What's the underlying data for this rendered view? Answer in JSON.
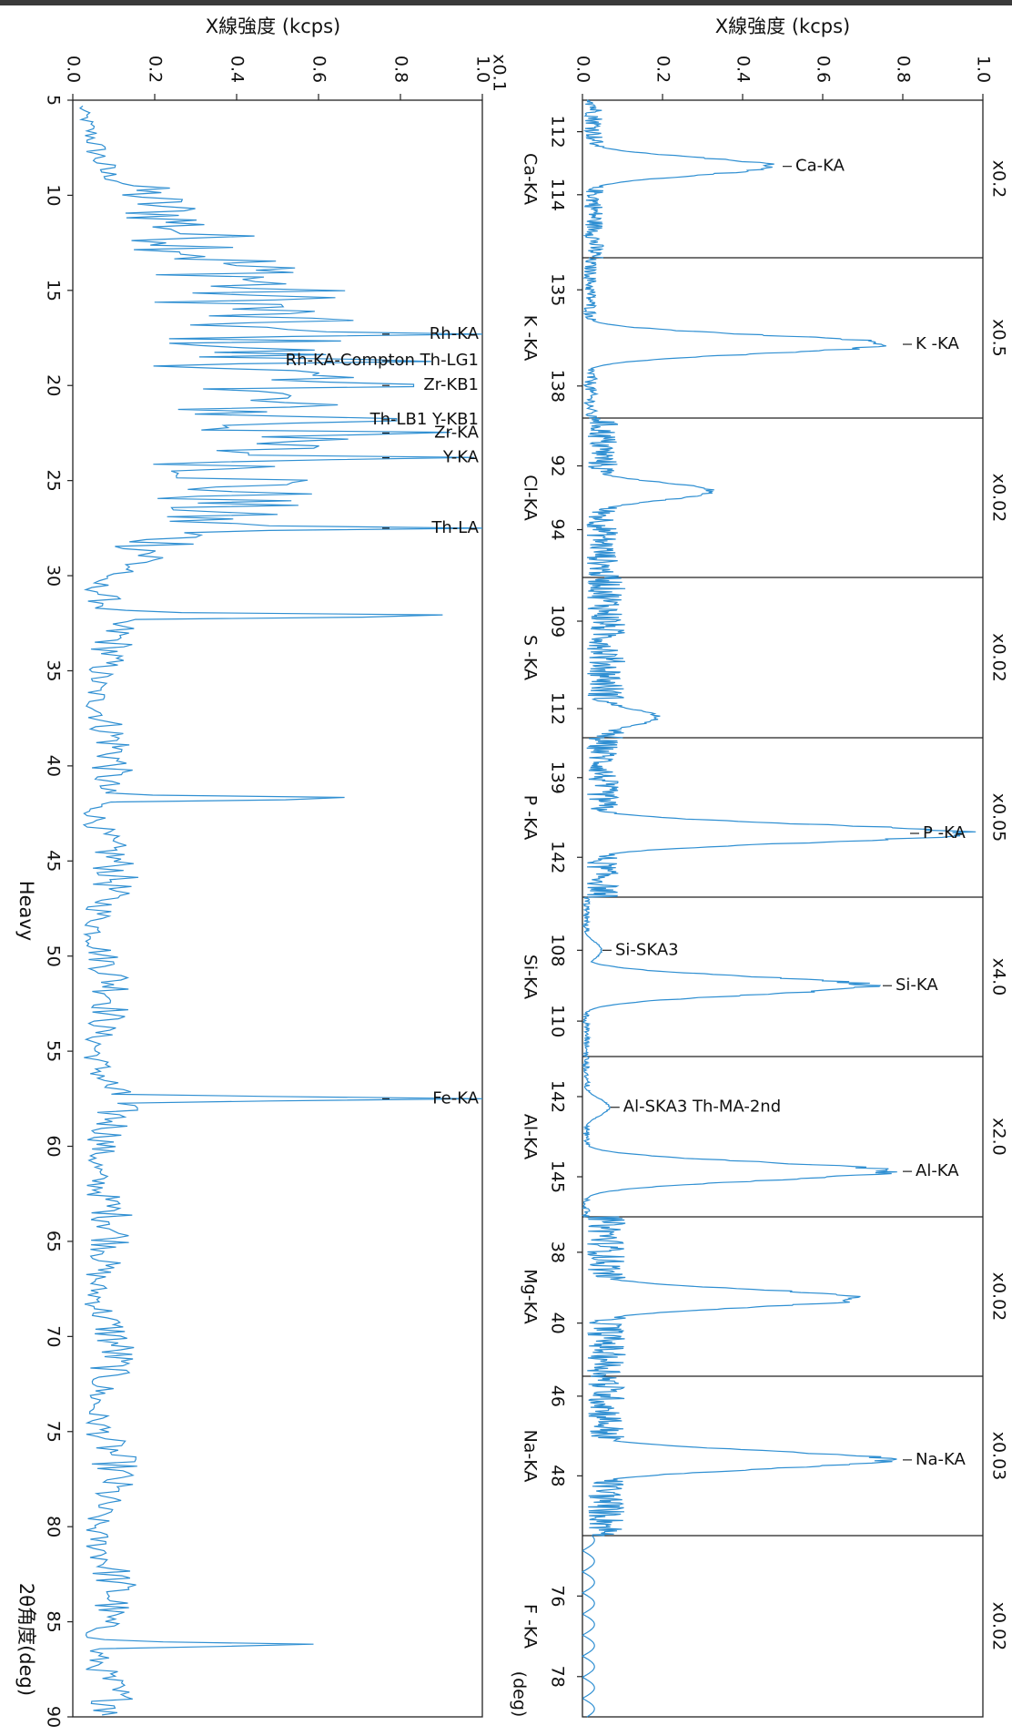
{
  "chart_data": [
    {
      "type": "line",
      "name_printed": "Heavy",
      "ylabel": "X線強度 (kcps)",
      "xlabel": "2θ角度(deg)",
      "y_multiplier": "x0.1",
      "ylim": [
        0,
        1.0
      ],
      "yticks": [
        "0.0",
        "0.2",
        "0.4",
        "0.6",
        "0.8",
        "1.0"
      ],
      "xlim": [
        5,
        90
      ],
      "xticks": [
        "5",
        "10",
        "15",
        "20",
        "25",
        "30",
        "35",
        "40",
        "45",
        "50",
        "55",
        "60",
        "65",
        "70",
        "75",
        "80",
        "85",
        "90"
      ],
      "grid": false,
      "peaks": [
        {
          "x": 17.3,
          "y": 1.0,
          "label": "Rh-KA"
        },
        {
          "x": 18.7,
          "y": 0.95,
          "label": "Rh-KA-Compton Th-LG1"
        },
        {
          "x": 20.0,
          "y": 1.0,
          "label": "Zr-KB1"
        },
        {
          "x": 21.8,
          "y": 0.95,
          "label": "Th-LB1 Y-KB1"
        },
        {
          "x": 22.5,
          "y": 1.0,
          "label": "Zr-KA"
        },
        {
          "x": 23.8,
          "y": 1.0,
          "label": "Y-KA"
        },
        {
          "x": 27.5,
          "y": 1.0,
          "label": "Th-LA"
        },
        {
          "x": 57.5,
          "y": 1.0,
          "label": "Fe-KA"
        }
      ],
      "notable_peaks": [
        {
          "x": 32.1,
          "y": 0.98
        },
        {
          "x": 41.7,
          "y": 0.72
        },
        {
          "x": 86.2,
          "y": 0.6
        }
      ]
    },
    {
      "type": "line",
      "ylabel": "X線強度 (kcps)",
      "x_unit": "(deg)",
      "ylim": [
        0,
        1.0
      ],
      "yticks": [
        "0.0",
        "0.2",
        "0.4",
        "0.6",
        "0.8",
        "1.0"
      ],
      "grid": false,
      "panels": [
        {
          "element": "Ca-KA",
          "scale": "x0.2",
          "xlim": [
            111,
            116
          ],
          "xticks": [
            "112",
            "114"
          ],
          "peaks": [
            {
              "x": 113.1,
              "y": 0.5,
              "label": "Ca-KA"
            }
          ],
          "background": 0.03
        },
        {
          "element": "K -KA",
          "scale": "x0.5",
          "xlim": [
            134,
            139
          ],
          "xticks": [
            "135",
            "138"
          ],
          "peaks": [
            {
              "x": 136.7,
              "y": 0.8,
              "label": "K -KA"
            }
          ],
          "background": 0.02
        },
        {
          "element": "Cl-KA",
          "scale": "x0.02",
          "xlim": [
            90.5,
            95.5
          ],
          "xticks": [
            "92",
            "94"
          ],
          "peaks": [
            {
              "x": 92.8,
              "y": 0.34
            }
          ],
          "background": 0.05
        },
        {
          "element": "S -KA",
          "scale": "x0.02",
          "xlim": [
            107.5,
            113
          ],
          "xticks": [
            "109",
            "112"
          ],
          "peaks": [
            {
              "x": 112.3,
              "y": 0.2
            }
          ],
          "background": 0.06
        },
        {
          "element": "P -KA",
          "scale": "x0.05",
          "xlim": [
            137.5,
            143.5
          ],
          "xticks": [
            "139",
            "142"
          ],
          "peaks": [
            {
              "x": 141.1,
              "y": 1.0,
              "label": "P -KA"
            }
          ],
          "background": 0.05
        },
        {
          "element": "Si-KA",
          "scale": "x4.0",
          "xlim": [
            106.5,
            111
          ],
          "xticks": [
            "108",
            "110"
          ],
          "peaks": [
            {
              "x": 109.0,
              "y": 0.75,
              "label": "Si-KA"
            },
            {
              "x": 108.0,
              "y": 0.05,
              "label": "Si-SKA3"
            }
          ],
          "background": 0.01
        },
        {
          "element": "Al-KA",
          "scale": "x2.0",
          "xlim": [
            140.5,
            146.5
          ],
          "xticks": [
            "142",
            "145"
          ],
          "peaks": [
            {
              "x": 144.8,
              "y": 0.8,
              "label": "Al-KA"
            },
            {
              "x": 142.4,
              "y": 0.07,
              "label": "Al-SKA3 Th-MA-2nd"
            }
          ],
          "background": 0.01
        },
        {
          "element": "Mg-KA",
          "scale": "x0.02",
          "xlim": [
            37,
            41.5
          ],
          "xticks": [
            "38",
            "40"
          ],
          "peaks": [
            {
              "x": 39.3,
              "y": 0.73
            }
          ],
          "background": 0.06
        },
        {
          "element": "Na-KA",
          "scale": "x0.03",
          "xlim": [
            45.5,
            49.5
          ],
          "xticks": [
            "46",
            "48"
          ],
          "peaks": [
            {
              "x": 47.6,
              "y": 0.8,
              "label": "Na-KA"
            }
          ],
          "background": 0.06
        },
        {
          "element": "F -KA",
          "scale": "x0.02",
          "xlim": [
            74.5,
            79
          ],
          "xticks": [
            "76",
            "78"
          ],
          "peaks": [],
          "background": 0.0
        }
      ]
    }
  ]
}
